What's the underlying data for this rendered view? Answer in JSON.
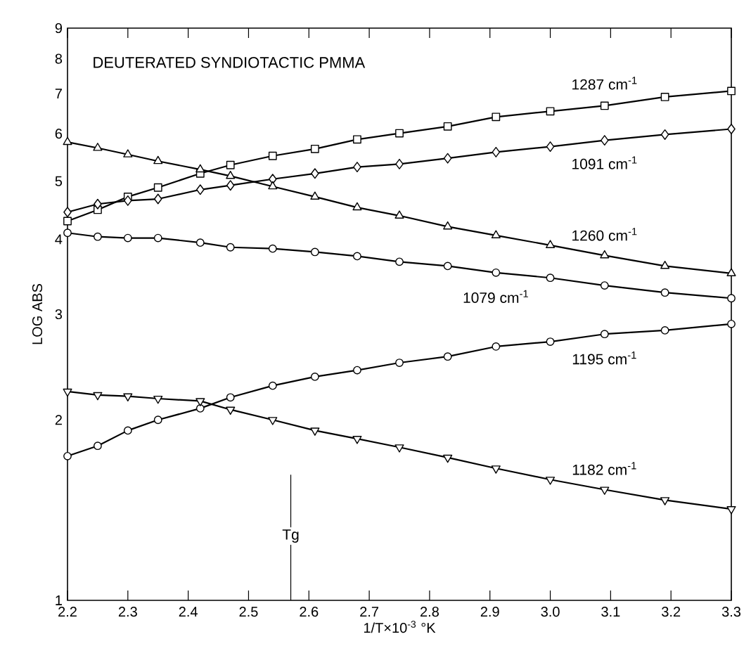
{
  "chart_data": {
    "type": "line",
    "title": "DEUTERATED SYNDIOTACTIC PMMA",
    "xlabel": "1/T×10$^{-3}$ °K",
    "ylabel": "LOG ABS",
    "x": [
      2.2,
      2.25,
      2.3,
      2.35,
      2.42,
      2.47,
      2.54,
      2.61,
      2.68,
      2.75,
      2.83,
      2.91,
      3.0,
      3.09,
      3.19,
      3.3
    ],
    "series": [
      {
        "name": "1287 cm$^{-1}$",
        "color": "#000000",
        "marker": "square",
        "values": [
          4.29,
          4.48,
          4.71,
          4.88,
          5.15,
          5.32,
          5.51,
          5.66,
          5.87,
          6.01,
          6.17,
          6.4,
          6.54,
          6.68,
          6.91,
          7.07
        ]
      },
      {
        "name": "1091 cm$^{-1}$",
        "color": "#000000",
        "marker": "diamond",
        "values": [
          4.44,
          4.58,
          4.64,
          4.67,
          4.84,
          4.92,
          5.04,
          5.15,
          5.28,
          5.34,
          5.46,
          5.59,
          5.71,
          5.85,
          5.98,
          6.11
        ]
      },
      {
        "name": "1260 cm$^{-1}$",
        "color": "#000000",
        "marker": "triangle",
        "values": [
          5.81,
          5.68,
          5.54,
          5.4,
          5.23,
          5.1,
          4.9,
          4.71,
          4.52,
          4.38,
          4.2,
          4.06,
          3.91,
          3.76,
          3.61,
          3.51
        ]
      },
      {
        "name": "1079 cm$^{-1}$",
        "color": "#000000",
        "marker": "circle",
        "values": [
          4.1,
          4.04,
          4.02,
          4.02,
          3.95,
          3.88,
          3.86,
          3.81,
          3.75,
          3.67,
          3.61,
          3.52,
          3.45,
          3.35,
          3.26,
          3.19
        ]
      },
      {
        "name": "1195 cm$^{-1}$",
        "color": "#000000",
        "marker": "circle",
        "values": [
          1.74,
          1.81,
          1.92,
          2.0,
          2.09,
          2.18,
          2.28,
          2.36,
          2.42,
          2.49,
          2.55,
          2.65,
          2.7,
          2.78,
          2.82,
          2.89
        ]
      },
      {
        "name": "1182 cm$^{-1}$",
        "color": "#000000",
        "marker": "triangle-down",
        "values": [
          2.23,
          2.2,
          2.19,
          2.17,
          2.15,
          2.08,
          2.0,
          1.92,
          1.86,
          1.8,
          1.73,
          1.66,
          1.59,
          1.53,
          1.47,
          1.42
        ]
      }
    ],
    "log": "y",
    "xlim": [
      2.2,
      3.3
    ],
    "ylim": [
      1,
      9
    ],
    "xticks": [
      {
        "value": 2.2,
        "label": "2.2"
      },
      {
        "value": 2.3,
        "label": "2.3"
      },
      {
        "value": 2.4,
        "label": "2.4"
      },
      {
        "value": 2.5,
        "label": "2.5"
      },
      {
        "value": 2.6,
        "label": "2.6"
      },
      {
        "value": 2.7,
        "label": "2.7"
      },
      {
        "value": 2.8,
        "label": "2.8"
      },
      {
        "value": 2.9,
        "label": "2.9"
      },
      {
        "value": 3.0,
        "label": "3.0"
      },
      {
        "value": 3.1,
        "label": "3.1"
      },
      {
        "value": 3.2,
        "label": "3.2"
      },
      {
        "value": 3.3,
        "label": "3.3"
      }
    ],
    "yticks": [
      1,
      2,
      3,
      4,
      5,
      6,
      7,
      8,
      9
    ],
    "ref_lines": [
      {
        "axis": "x",
        "value": 2.57,
        "label": "Tg",
        "color": "#000000"
      }
    ],
    "grid": false,
    "line_style": "solid"
  }
}
